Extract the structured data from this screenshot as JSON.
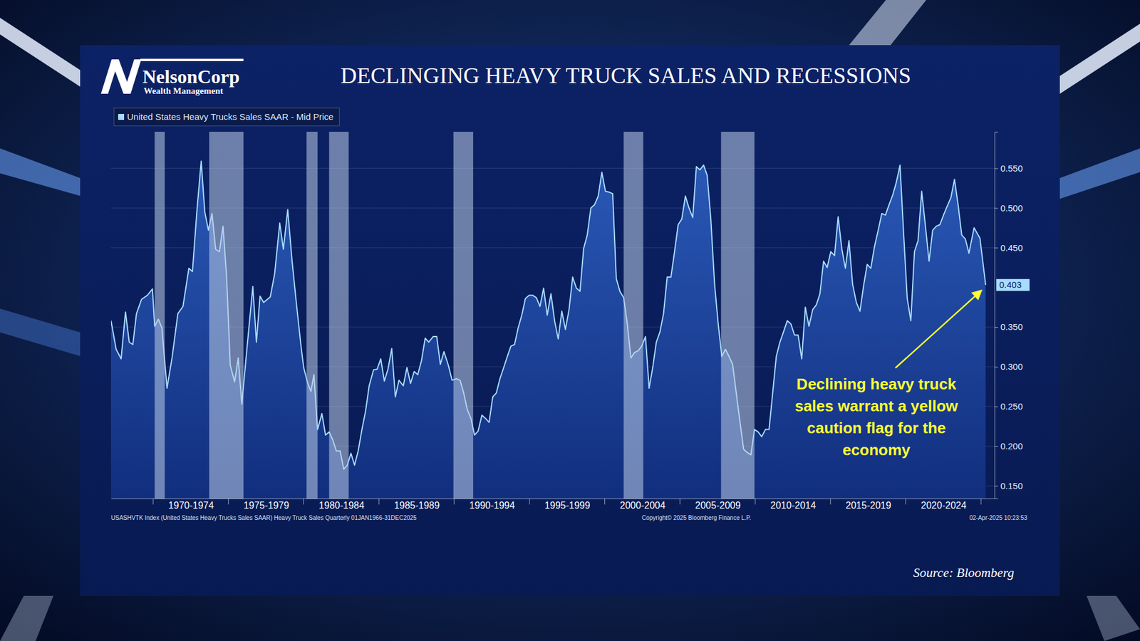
{
  "branding": {
    "logo": "NelsonCorp",
    "tagline": "Wealth Management"
  },
  "source": "Source: Bloomberg",
  "footer": {
    "index": "USASHVTK Index (United States Heavy Trucks Sales SAAR) Heavy Truck Sales Quarterly 01JAN1966-31DEC2025",
    "copyright": "Copyright© 2025 Bloomberg Finance L.P.",
    "timestamp": "02-Apr-2025 10:23:53"
  },
  "chart_data": {
    "type": "area",
    "title": "DECLINGING HEAVY TRUCK SALES AND RECESSIONS",
    "legend": "top-left",
    "grid": true,
    "xlim": [
      1967.2,
      2025.9
    ],
    "xticks": [
      {
        "value": 1972.5,
        "label": "1970-1974"
      },
      {
        "value": 1977.5,
        "label": "1975-1979"
      },
      {
        "value": 1982.5,
        "label": "1980-1984"
      },
      {
        "value": 1987.5,
        "label": "1985-1989"
      },
      {
        "value": 1992.5,
        "label": "1990-1994"
      },
      {
        "value": 1997.5,
        "label": "1995-1999"
      },
      {
        "value": 2002.5,
        "label": "2000-2004"
      },
      {
        "value": 2007.5,
        "label": "2005-2009"
      },
      {
        "value": 2012.5,
        "label": "2010-2014"
      },
      {
        "value": 2017.5,
        "label": "2015-2019"
      },
      {
        "value": 2022.5,
        "label": "2020-2024"
      }
    ],
    "ylim": [
      0.134,
      0.596
    ],
    "yticks": [
      {
        "value": 0.15,
        "label": "0.150"
      },
      {
        "value": 0.2,
        "label": "0.200"
      },
      {
        "value": 0.25,
        "label": "0.250"
      },
      {
        "value": 0.3,
        "label": "0.300"
      },
      {
        "value": 0.35,
        "label": "0.350"
      },
      {
        "value": 0.45,
        "label": "0.450"
      },
      {
        "value": 0.5,
        "label": "0.500"
      },
      {
        "value": 0.55,
        "label": "0.550"
      }
    ],
    "recessions": [
      [
        1970.1,
        1970.77
      ],
      [
        1973.72,
        1976.0
      ],
      [
        1980.19,
        1980.92
      ],
      [
        1981.69,
        1982.99
      ],
      [
        1989.95,
        1991.26
      ],
      [
        2001.26,
        2002.56
      ],
      [
        2007.73,
        2009.95
      ]
    ],
    "annotations": [
      {
        "lines": [
          "Declining heavy truck",
          "sales warrant a yellow",
          "caution flag for the",
          "economy"
        ],
        "color": "#ffff33"
      }
    ],
    "x": [
      1967.2,
      1967.54,
      1967.87,
      1968.16,
      1968.41,
      1968.65,
      1968.89,
      1969.23,
      1969.61,
      1969.95,
      1970.1,
      1970.34,
      1970.58,
      1970.92,
      1971.26,
      1971.64,
      1971.98,
      1972.37,
      1972.61,
      1972.9,
      1973.19,
      1973.43,
      1973.67,
      1973.91,
      1974.15,
      1974.4,
      1974.64,
      1974.88,
      1975.12,
      1975.41,
      1975.65,
      1975.89,
      1976.23,
      1976.62,
      1976.86,
      1977.1,
      1977.34,
      1977.78,
      1978.07,
      1978.41,
      1978.65,
      1978.94,
      1979.23,
      1979.52,
      1979.81,
      1980.0,
      1980.24,
      1980.48,
      1980.68,
      1980.92,
      1981.21,
      1981.45,
      1981.69,
      1981.93,
      1982.17,
      1982.42,
      1982.66,
      1982.9,
      1983.14,
      1983.38,
      1983.62,
      1983.87,
      1984.11,
      1984.35,
      1984.64,
      1984.88,
      1985.12,
      1985.36,
      1985.6,
      1985.85,
      1986.09,
      1986.33,
      1986.62,
      1986.86,
      1987.1,
      1987.34,
      1987.58,
      1987.83,
      1988.07,
      1988.31,
      1988.6,
      1988.84,
      1989.08,
      1989.32,
      1989.61,
      1989.86,
      1990.14,
      1990.39,
      1990.63,
      1990.87,
      1991.11,
      1991.35,
      1991.59,
      1991.84,
      1992.08,
      1992.32,
      1992.56,
      1992.8,
      1993.04,
      1993.29,
      1993.53,
      1993.77,
      1994.01,
      1994.25,
      1994.49,
      1994.73,
      1994.98,
      1995.22,
      1995.46,
      1995.7,
      1995.94,
      1996.18,
      1996.43,
      1996.67,
      1996.91,
      1997.15,
      1997.39,
      1997.63,
      1997.87,
      1998.12,
      1998.36,
      1998.6,
      1998.84,
      1999.08,
      1999.32,
      1999.57,
      1999.81,
      2000.05,
      2000.29,
      2000.53,
      2000.77,
      2001.01,
      2001.26,
      2001.5,
      2001.74,
      2001.98,
      2002.22,
      2002.46,
      2002.71,
      2002.95,
      2003.19,
      2003.43,
      2003.67,
      2003.91,
      2004.15,
      2004.4,
      2004.64,
      2004.88,
      2005.12,
      2005.36,
      2005.6,
      2005.85,
      2006.09,
      2006.33,
      2006.57,
      2006.81,
      2007.05,
      2007.3,
      2007.54,
      2007.78,
      2008.02,
      2008.26,
      2008.5,
      2008.74,
      2008.99,
      2009.23,
      2009.47,
      2009.71,
      2009.95,
      2010.19,
      2010.43,
      2010.68,
      2010.92,
      2011.16,
      2011.4,
      2011.64,
      2011.88,
      2012.13,
      2012.37,
      2012.61,
      2012.85,
      2013.09,
      2013.33,
      2013.57,
      2013.82,
      2014.06,
      2014.3,
      2014.54,
      2014.78,
      2015.02,
      2015.27,
      2015.51,
      2015.75,
      2015.99,
      2016.23,
      2016.47,
      2016.72,
      2016.96,
      2017.2,
      2017.44,
      2017.68,
      2017.92,
      2018.17,
      2018.41,
      2018.65,
      2018.89,
      2019.13,
      2019.37,
      2019.62,
      2019.86,
      2020.1,
      2020.34,
      2020.58,
      2020.82,
      2021.06,
      2021.31,
      2021.55,
      2021.79,
      2022.03,
      2022.27,
      2022.51,
      2022.75,
      2023.0,
      2023.24,
      2023.48,
      2023.72,
      2023.96,
      2024.2,
      2024.54,
      2024.93,
      2025.31
    ],
    "series": [
      {
        "name": "United States Heavy Trucks Sales SAAR - Mid Price",
        "color": "#a8dcff",
        "values": [
          0.358,
          0.322,
          0.31,
          0.369,
          0.331,
          0.328,
          0.367,
          0.385,
          0.39,
          0.398,
          0.351,
          0.36,
          0.349,
          0.273,
          0.312,
          0.367,
          0.376,
          0.424,
          0.42,
          0.495,
          0.559,
          0.495,
          0.472,
          0.493,
          0.448,
          0.445,
          0.477,
          0.413,
          0.302,
          0.281,
          0.311,
          0.253,
          0.323,
          0.401,
          0.331,
          0.389,
          0.381,
          0.388,
          0.417,
          0.481,
          0.448,
          0.498,
          0.433,
          0.379,
          0.328,
          0.299,
          0.281,
          0.269,
          0.29,
          0.221,
          0.241,
          0.214,
          0.218,
          0.208,
          0.194,
          0.194,
          0.171,
          0.176,
          0.191,
          0.176,
          0.194,
          0.221,
          0.244,
          0.276,
          0.296,
          0.297,
          0.31,
          0.282,
          0.297,
          0.323,
          0.262,
          0.283,
          0.276,
          0.299,
          0.279,
          0.294,
          0.29,
          0.308,
          0.336,
          0.331,
          0.338,
          0.338,
          0.303,
          0.319,
          0.302,
          0.283,
          0.285,
          0.283,
          0.267,
          0.246,
          0.235,
          0.214,
          0.219,
          0.239,
          0.235,
          0.23,
          0.262,
          0.267,
          0.285,
          0.299,
          0.313,
          0.326,
          0.328,
          0.349,
          0.365,
          0.386,
          0.39,
          0.39,
          0.387,
          0.376,
          0.399,
          0.365,
          0.392,
          0.358,
          0.335,
          0.37,
          0.347,
          0.372,
          0.413,
          0.399,
          0.395,
          0.449,
          0.466,
          0.5,
          0.504,
          0.515,
          0.545,
          0.521,
          0.52,
          0.518,
          0.411,
          0.395,
          0.387,
          0.354,
          0.311,
          0.318,
          0.32,
          0.326,
          0.338,
          0.273,
          0.299,
          0.331,
          0.344,
          0.367,
          0.413,
          0.413,
          0.445,
          0.479,
          0.486,
          0.515,
          0.5,
          0.488,
          0.552,
          0.548,
          0.554,
          0.541,
          0.486,
          0.404,
          0.354,
          0.313,
          0.322,
          0.313,
          0.303,
          0.267,
          0.23,
          0.196,
          0.192,
          0.189,
          0.221,
          0.218,
          0.212,
          0.221,
          0.221,
          0.267,
          0.313,
          0.331,
          0.344,
          0.358,
          0.354,
          0.34,
          0.34,
          0.31,
          0.375,
          0.351,
          0.372,
          0.378,
          0.392,
          0.433,
          0.425,
          0.445,
          0.44,
          0.489,
          0.449,
          0.424,
          0.459,
          0.404,
          0.381,
          0.37,
          0.402,
          0.429,
          0.424,
          0.451,
          0.472,
          0.493,
          0.491,
          0.504,
          0.516,
          0.532,
          0.554,
          0.468,
          0.386,
          0.358,
          0.445,
          0.459,
          0.521,
          0.477,
          0.433,
          0.472,
          0.477,
          0.479,
          0.491,
          0.502,
          0.513,
          0.536,
          0.504,
          0.466,
          0.461,
          0.443,
          0.475,
          0.462,
          0.403
        ],
        "value_labels": [
          null,
          null,
          null,
          null,
          null,
          null,
          null,
          null,
          null,
          null,
          null,
          null,
          null,
          null,
          null,
          null,
          null,
          null,
          null,
          null,
          null,
          null,
          null,
          null,
          null,
          null,
          null,
          null,
          null,
          null,
          null,
          null,
          null,
          null,
          null,
          null,
          null,
          null,
          null,
          null,
          null,
          null,
          null,
          null,
          null,
          null,
          null,
          null,
          null,
          null,
          null,
          null,
          null,
          null,
          null,
          null,
          null,
          null,
          null,
          null,
          null,
          null,
          null,
          null,
          null,
          null,
          null,
          null,
          null,
          null,
          null,
          null,
          null,
          null,
          null,
          null,
          null,
          null,
          null,
          null,
          null,
          null,
          null,
          null,
          null,
          null,
          null,
          null,
          null,
          null,
          null,
          null,
          null,
          null,
          null,
          null,
          null,
          null,
          null,
          null,
          null,
          null,
          null,
          null,
          null,
          null,
          null,
          null,
          null,
          null,
          null,
          null,
          null,
          null,
          null,
          null,
          null,
          null,
          null,
          null,
          null,
          null,
          null,
          null,
          null,
          null,
          null,
          null,
          null,
          null,
          null,
          null,
          null,
          null,
          null,
          null,
          null,
          null,
          null,
          null,
          null,
          null,
          null,
          null,
          null,
          null,
          null,
          null,
          null,
          null,
          null,
          null,
          null,
          null,
          null,
          null,
          null,
          null,
          null,
          null,
          null,
          null,
          null,
          null,
          null,
          null,
          null,
          null,
          null,
          null,
          null,
          null,
          null,
          null,
          null,
          null,
          null,
          null,
          null,
          null,
          null,
          null,
          null,
          null,
          null,
          null,
          null,
          null,
          null,
          null,
          null,
          null,
          null,
          null,
          null,
          null,
          null,
          null,
          null,
          null,
          null,
          null,
          null,
          null,
          null,
          null,
          null,
          null,
          null,
          null,
          null,
          null,
          null,
          null,
          null,
          null,
          null,
          null,
          null,
          null,
          null,
          null,
          null,
          null,
          null,
          null,
          null,
          null,
          null,
          null,
          "0.403"
        ]
      }
    ]
  }
}
